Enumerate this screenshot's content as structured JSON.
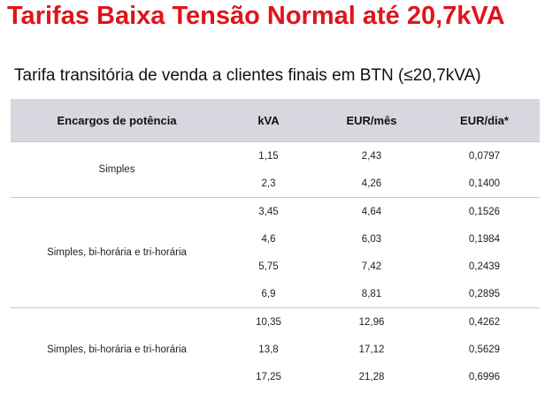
{
  "title": "Tarifas Baixa Tensão Normal até 20,7kVA",
  "subtitle": "Tarifa transitória de venda a clientes finais em BTN (≤20,7kVA)",
  "table": {
    "headers": [
      "Encargos de potência",
      "kVA",
      "EUR/mês",
      "EUR/dia*"
    ],
    "groups": [
      {
        "label": "Simples",
        "rows": [
          {
            "kva": "1,15",
            "eur_mes": "2,43",
            "eur_dia": "0,0797"
          },
          {
            "kva": "2,3",
            "eur_mes": "4,26",
            "eur_dia": "0,1400"
          }
        ]
      },
      {
        "label": "Simples, bi-horária e tri-horária",
        "rows": [
          {
            "kva": "3,45",
            "eur_mes": "4,64",
            "eur_dia": "0,1526"
          },
          {
            "kva": "4,6",
            "eur_mes": "6,03",
            "eur_dia": "0,1984"
          },
          {
            "kva": "5,75",
            "eur_mes": "7,42",
            "eur_dia": "0,2439"
          },
          {
            "kva": "6,9",
            "eur_mes": "8,81",
            "eur_dia": "0,2895"
          }
        ]
      },
      {
        "label": "Simples, bi-horária e tri-horária",
        "rows": [
          {
            "kva": "10,35",
            "eur_mes": "12,96",
            "eur_dia": "0,4262"
          },
          {
            "kva": "13,8",
            "eur_mes": "17,12",
            "eur_dia": "0,5629"
          },
          {
            "kva": "17,25",
            "eur_mes": "21,28",
            "eur_dia": "0,6996"
          }
        ]
      }
    ]
  }
}
